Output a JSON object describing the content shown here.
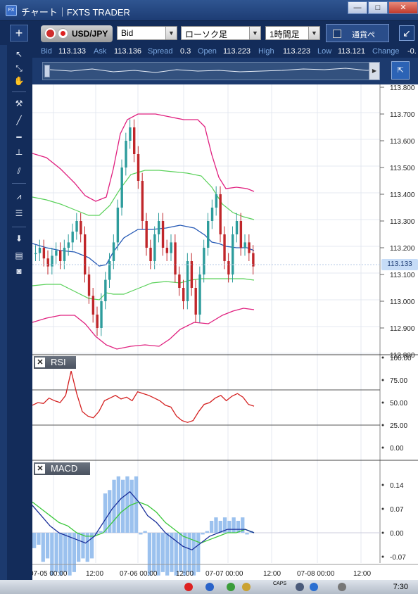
{
  "window": {
    "title": "チャート｜FXTS TRADER",
    "app_icon": "FX",
    "minimize": "—",
    "maximize": "□",
    "close": "✕"
  },
  "toolbar": {
    "add_label": "+",
    "pair": "USD/JPY",
    "price_type": "Bid",
    "chart_type": "ローソク足",
    "timeframe": "1時間足",
    "currency_label": "通貨ペ",
    "resize_icon": "↙"
  },
  "quote": {
    "bid_label": "Bid",
    "bid": "113.133",
    "ask_label": "Ask",
    "ask": "113.136",
    "spread_label": "Spread",
    "spread": "0.3",
    "open_label": "Open",
    "open": "113.223",
    "high_label": "High",
    "high": "113.223",
    "low_label": "Low",
    "low": "113.121",
    "change_label": "Change",
    "change": "-0."
  },
  "price_axis": [
    "113.800",
    "113.700",
    "113.600",
    "113.500",
    "113.400",
    "113.300",
    "113.200",
    "113.100",
    "113.000",
    "112.900",
    "112.800"
  ],
  "current_price": "113.133",
  "rsi": {
    "label": "RSI",
    "ticks": [
      "100.00",
      "75.00",
      "50.00",
      "25.00",
      "0.00"
    ]
  },
  "macd": {
    "label": "MACD",
    "ticks": [
      "0.14",
      "0.07",
      "0.00",
      "-0.07"
    ]
  },
  "time_axis": [
    "07-05 00:00",
    "12:00",
    "07-06 00:00",
    "12:00",
    "07-07 00:00",
    "12:00",
    "07-08 00:00",
    "12:00"
  ],
  "taskbar": {
    "clock": "7:30",
    "caps": "CAPS"
  },
  "colors": {
    "bollinger_outer": "#e0207f",
    "bollinger_inner": "#5ad15a",
    "ma": "#2559b5",
    "up": "#2d9c9c",
    "down": "#c0262a",
    "rsi": "#d42020",
    "macd": "#1a2f9a",
    "signal": "#3cc83c",
    "hist": "#9bc1ee"
  },
  "chart_data": {
    "type": "line",
    "time_labels": [
      "07-05 00:00",
      "12:00",
      "07-06 00:00",
      "12:00",
      "07-07 00:00",
      "12:00",
      "07-08 00:00",
      "12:00"
    ],
    "ylim": [
      112.8,
      113.8
    ],
    "close": [
      113.18,
      113.2,
      113.16,
      113.13,
      113.17,
      113.19,
      113.15,
      113.2,
      113.22,
      113.26,
      113.3,
      113.25,
      113.1,
      113.02,
      112.95,
      112.9,
      113.0,
      113.08,
      113.15,
      113.22,
      113.35,
      113.5,
      113.6,
      113.65,
      113.55,
      113.45,
      113.3,
      113.2,
      113.15,
      113.25,
      113.3,
      113.2,
      113.18,
      113.22,
      113.1,
      113.05,
      113.0,
      113.15,
      113.05,
      112.95,
      113.1,
      113.2,
      113.3,
      113.35,
      113.4,
      113.25,
      113.15,
      113.1,
      113.25,
      113.3,
      113.2,
      113.22,
      113.18,
      113.13
    ],
    "rsi": [
      47,
      50,
      49,
      55,
      52,
      50,
      58,
      85,
      60,
      40,
      35,
      33,
      40,
      52,
      55,
      58,
      54,
      56,
      52,
      62,
      60,
      58,
      55,
      52,
      47,
      45,
      35,
      30,
      28,
      30,
      40,
      48,
      50,
      55,
      58,
      52,
      57,
      60,
      56,
      48,
      46
    ],
    "macd": [
      0.08,
      0.05,
      0.02,
      0.0,
      -0.01,
      -0.02,
      -0.03,
      -0.01,
      0.03,
      0.07,
      0.1,
      0.12,
      0.09,
      0.05,
      0.03,
      0.0,
      -0.02,
      -0.04,
      -0.05,
      -0.03,
      -0.01,
      0.0,
      0.01,
      0.01,
      0.01,
      0.0
    ],
    "signal": [
      0.09,
      0.07,
      0.05,
      0.03,
      0.02,
      0.0,
      -0.01,
      -0.01,
      0.0,
      0.03,
      0.06,
      0.08,
      0.09,
      0.08,
      0.06,
      0.03,
      0.01,
      -0.01,
      -0.02,
      -0.03,
      -0.02,
      -0.01,
      0.0,
      0.0,
      0.01,
      0.0
    ]
  }
}
